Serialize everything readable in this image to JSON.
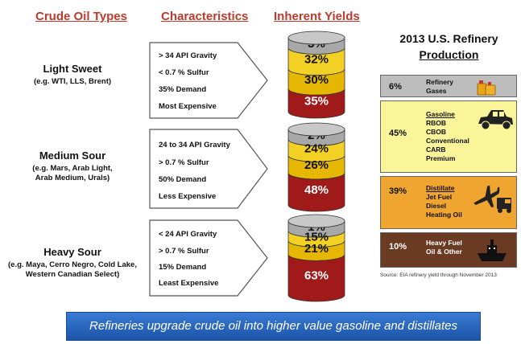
{
  "headers": {
    "crude_oil_types": "Crude Oil Types",
    "characteristics": "Characteristics",
    "inherent_yields": "Inherent Yields"
  },
  "crudes": [
    {
      "name": "Light Sweet",
      "examples": [
        "(e.g. WTI, LLS, Brent)"
      ],
      "characteristics": [
        "> 34 API Gravity",
        "< 0.7 % Sulfur",
        "35% Demand",
        "Most Expensive"
      ],
      "yields": [
        {
          "label": "3%",
          "value": 3
        },
        {
          "label": "32%",
          "value": 32
        },
        {
          "label": "30%",
          "value": 30
        },
        {
          "label": "35%",
          "value": 35
        }
      ]
    },
    {
      "name": "Medium Sour",
      "examples": [
        "(e.g. Mars, Arab Light,",
        "Arab Medium, Urals)"
      ],
      "characteristics": [
        "24 to 34 API Gravity",
        "> 0.7 % Sulfur",
        "50% Demand",
        "Less Expensive"
      ],
      "yields": [
        {
          "label": "2%",
          "value": 2
        },
        {
          "label": "24%",
          "value": 24
        },
        {
          "label": "26%",
          "value": 26
        },
        {
          "label": "48%",
          "value": 48
        }
      ]
    },
    {
      "name": "Heavy Sour",
      "examples": [
        "(e.g. Maya, Cerro Negro, Cold Lake,",
        "Western Canadian Select)"
      ],
      "characteristics": [
        "< 24 API Gravity",
        "> 0.7 % Sulfur",
        "15% Demand",
        "Least Expensive"
      ],
      "yields": [
        {
          "label": "1%",
          "value": 1
        },
        {
          "label": "15%",
          "value": 15
        },
        {
          "label": "21%",
          "value": 21
        },
        {
          "label": "63%",
          "value": 63
        }
      ]
    }
  ],
  "layer_colors": [
    "#a8a8a8",
    "#f2d024",
    "#e6b700",
    "#a11a1a"
  ],
  "refinery": {
    "title_line1": "2013 U.S. Refinery",
    "title_line2": "Production",
    "items": [
      {
        "pct": "6%",
        "title": "Refinery",
        "lines": [
          "Gases"
        ],
        "bg": "#bdbdbd",
        "icon": "gas-cans-icon"
      },
      {
        "pct": "45%",
        "title": "Gasoline",
        "lines": [
          "RBOB",
          "CBOB",
          "Conventional",
          "CARB",
          "Premium"
        ],
        "bg": "#fbf59a",
        "icon": "car-icon"
      },
      {
        "pct": "39%",
        "title": "Distillate",
        "lines": [
          "Jet Fuel",
          "Diesel",
          "Heating Oil"
        ],
        "bg": "#f0a530",
        "icon": "plane-truck-icon"
      },
      {
        "pct": "10%",
        "title": "Heavy Fuel",
        "lines": [
          "Oil & Other"
        ],
        "bg": "#6b3a22",
        "icon": "ship-icon"
      }
    ],
    "source": "Source: EIA refinery yield through November 2013"
  },
  "banner": "Refineries upgrade crude oil into higher value gasoline and distillates"
}
